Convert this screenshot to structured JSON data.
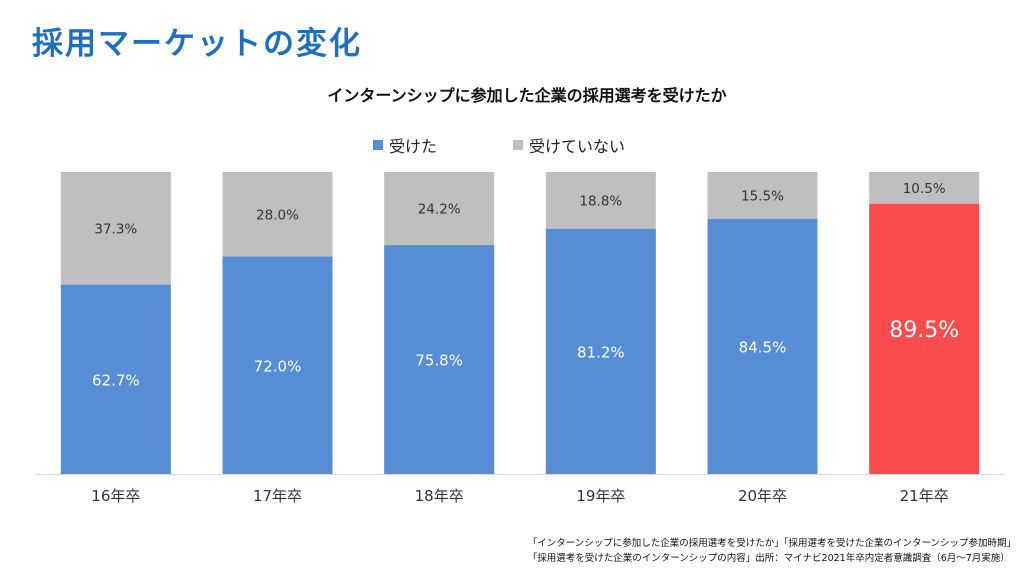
{
  "slide_title": "採用マーケットの変化",
  "footnote": {
    "line1": "「インターンシップに参加した企業の採用選考を受けたか」「採用選考を受けた企業のインターンシップ参加時期」",
    "line2": "「採用選考を受けた企業のインターンシップの内容」出所：マイナビ2021年卒内定者意識調査（6月～7月実施）"
  },
  "colors": {
    "title": "#1f6fbf",
    "received": "#568dd4",
    "not_received": "#bfbfbf",
    "highlight": "#fa4c4c"
  },
  "chart_data": {
    "type": "bar",
    "stacked": true,
    "title": "インターンシップに参加した企業の採用選考を受けたか",
    "categories": [
      "16年卒",
      "17年卒",
      "18年卒",
      "19年卒",
      "20年卒",
      "21年卒"
    ],
    "series": [
      {
        "name": "受けた",
        "values": [
          62.7,
          72.0,
          75.8,
          81.2,
          84.5,
          89.5
        ],
        "labels": [
          "62.7%",
          "72.0%",
          "75.8%",
          "81.2%",
          "84.5%",
          "89.5%"
        ]
      },
      {
        "name": "受けていない",
        "values": [
          37.3,
          28.0,
          24.2,
          18.8,
          15.5,
          10.5
        ],
        "labels": [
          "37.3%",
          "28.0%",
          "24.2%",
          "18.8%",
          "15.5%",
          "10.5%"
        ]
      }
    ],
    "highlight_category": "21年卒",
    "ylim": [
      0,
      100
    ],
    "legend_position": "top-center",
    "grid": false
  }
}
